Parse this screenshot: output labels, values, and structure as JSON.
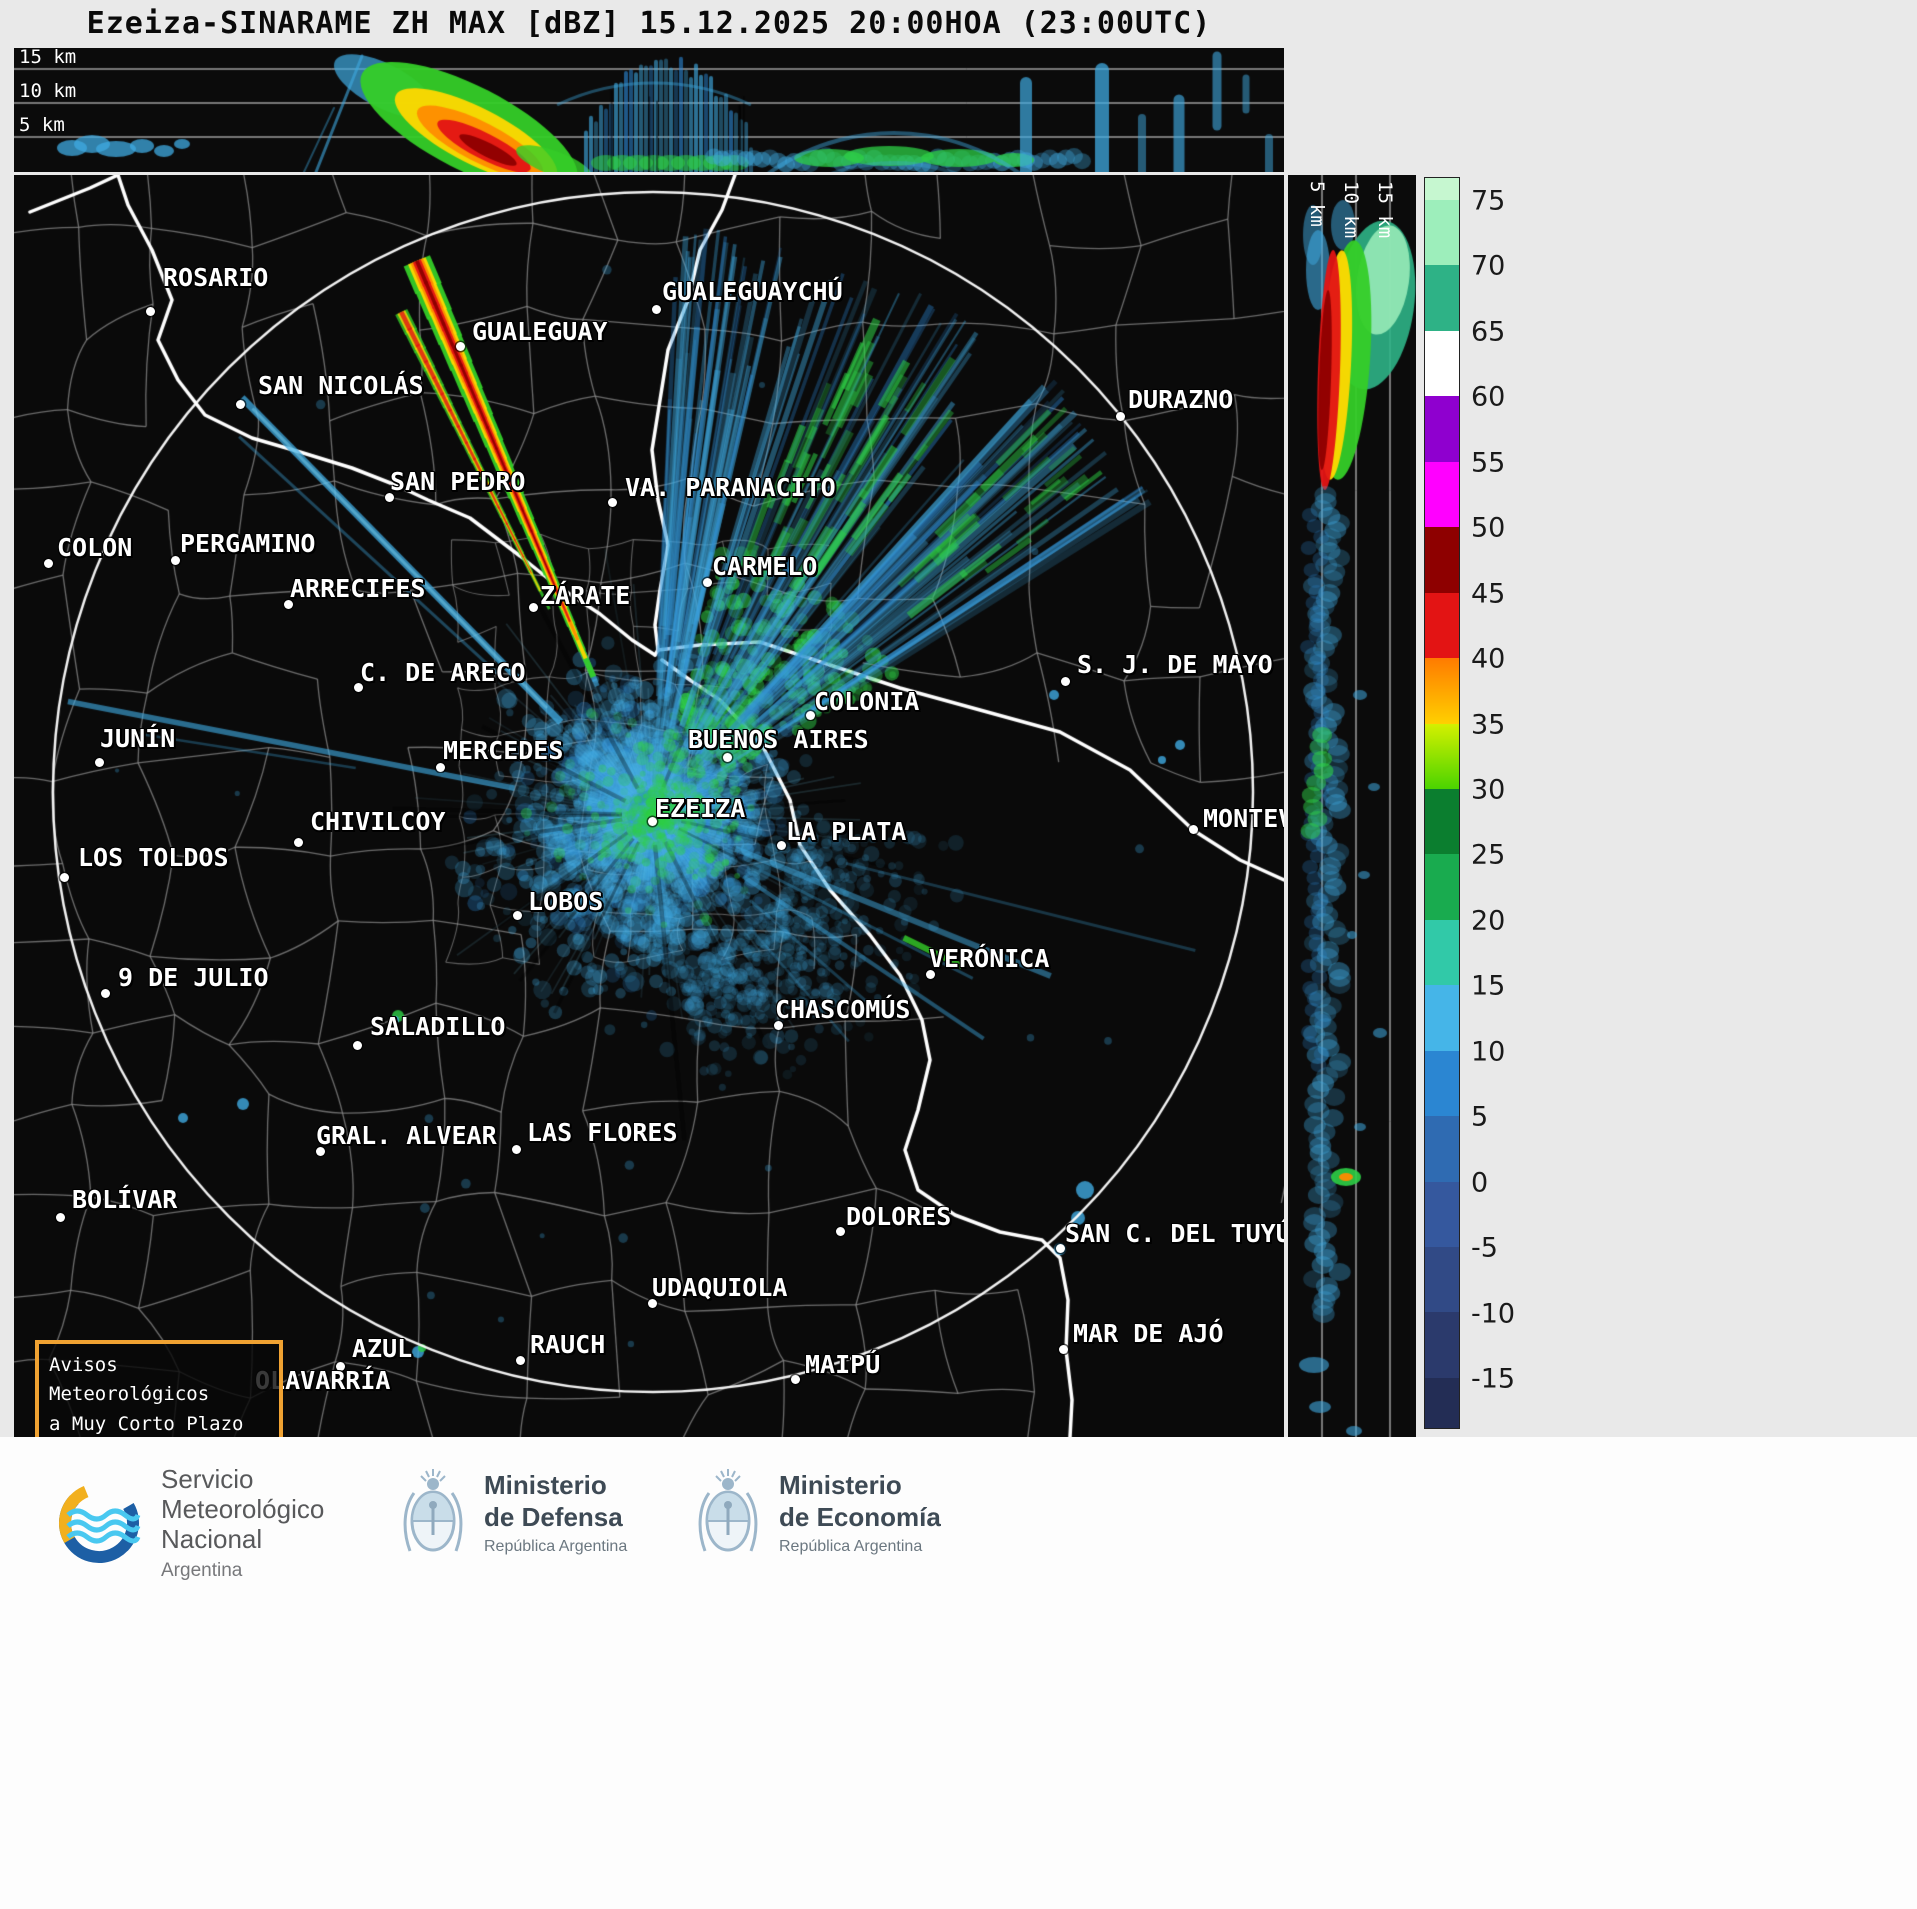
{
  "title": "Ezeiza-SINARAME ZH MAX [dBZ] 15.12.2025 20:00HOA (23:00UTC)",
  "radar": {
    "site": "Ezeiza",
    "product": "ZH MAX",
    "unit": "dBZ",
    "date": "15.12.2025",
    "time_local": "20:00HOA",
    "time_utc": "23:00UTC",
    "palette": {
      "blue": "#3fa9e0",
      "blue_light": "#7fd4f4",
      "blue_deep": "#2b86d2",
      "green": "#2ecf46",
      "green_bright": "#35cd28",
      "yellow": "#ffd800",
      "orange": "#ff8a00",
      "red": "#e31414",
      "dark_red": "#8e0000",
      "teal": "#2eb286",
      "mint": "#9deebb"
    }
  },
  "cross_sections": {
    "top_altitude_labels": [
      "15 km",
      "10 km",
      "5 km"
    ],
    "right_altitude_labels": [
      "5 km",
      "10 km",
      "15 km"
    ]
  },
  "colorbar": {
    "unit": "dBZ",
    "tick_labels": [
      "75",
      "70",
      "65",
      "60",
      "55",
      "50",
      "45",
      "40",
      "35",
      "30",
      "25",
      "20",
      "15",
      "10",
      "5",
      "0",
      "-5",
      "-10",
      "-15"
    ],
    "bands": [
      {
        "range": ">75",
        "color": "#c6f7d0"
      },
      {
        "range": "70-75",
        "color": "#9deebb"
      },
      {
        "range": "65-70",
        "color": "#2eb286"
      },
      {
        "range": "60-65",
        "color": "#ffffff"
      },
      {
        "range": "55-60",
        "color": "#8f00cf"
      },
      {
        "range": "50-55",
        "color": "#ff00ff"
      },
      {
        "range": "45-50",
        "color": "#8e0000"
      },
      {
        "range": "40-45",
        "color": "#e31414"
      },
      {
        "range": "35-40",
        "color": "#ff7b00",
        "color2": "#ffd000"
      },
      {
        "range": "30-35",
        "color": "#d4f000",
        "color2": "#4bd400"
      },
      {
        "range": "25-30",
        "color": "#0b7e2f"
      },
      {
        "range": "20-25",
        "color": "#19ab4f"
      },
      {
        "range": "15-20",
        "color": "#31c9a8"
      },
      {
        "range": "10-15",
        "color": "#45b5e8"
      },
      {
        "range": "5-10",
        "color": "#2b86d2"
      },
      {
        "range": "0-5",
        "color": "#2f6bb2"
      },
      {
        "range": "-5-0",
        "color": "#35589e"
      },
      {
        "range": "-10--5",
        "color": "#314a86"
      },
      {
        "range": "-15--10",
        "color": "#2b3a6c"
      },
      {
        "range": "<-15",
        "color": "#232d55"
      }
    ]
  },
  "map": {
    "warning_box": {
      "lines": [
        "Avisos Meteorológicos",
        "a Muy Corto Plazo"
      ]
    },
    "cities": [
      {
        "name": "ROSARIO",
        "label": [
          149,
          88
        ],
        "dot": [
          136,
          136
        ]
      },
      {
        "name": "GUALEGUAYCHÚ",
        "label": [
          648,
          102
        ],
        "dot": [
          642,
          134
        ]
      },
      {
        "name": "GUALEGUAY",
        "label": [
          458,
          142
        ],
        "dot": [
          446,
          171
        ]
      },
      {
        "name": "SAN NICOLÁS",
        "label": [
          244,
          196
        ],
        "dot": [
          226,
          229
        ]
      },
      {
        "name": "DURAZNO",
        "label": [
          1114,
          210
        ],
        "dot": [
          1106,
          241
        ]
      },
      {
        "name": "SAN PEDRO",
        "label": [
          376,
          292
        ],
        "dot": [
          375,
          322
        ]
      },
      {
        "name": "VA. PARANACITO",
        "label": [
          611,
          298
        ],
        "dot": [
          598,
          327
        ]
      },
      {
        "name": "COLON",
        "label": [
          43,
          358
        ],
        "dot": [
          34,
          388
        ]
      },
      {
        "name": "PERGAMINO",
        "label": [
          166,
          354
        ],
        "dot": [
          161,
          385
        ]
      },
      {
        "name": "ARRECIFES",
        "label": [
          276,
          399
        ],
        "dot": [
          274,
          429
        ]
      },
      {
        "name": "CARMELO",
        "label": [
          698,
          377
        ],
        "dot": [
          693,
          407
        ]
      },
      {
        "name": "ZÁRATE",
        "label": [
          526,
          406
        ],
        "dot": [
          519,
          432
        ]
      },
      {
        "name": "C. DE ARECO",
        "label": [
          346,
          483
        ],
        "dot": [
          344,
          512
        ]
      },
      {
        "name": "S. J. DE MAYO",
        "label": [
          1063,
          475
        ],
        "dot": [
          1051,
          506
        ]
      },
      {
        "name": "COLONIA",
        "label": [
          800,
          512
        ],
        "dot": [
          796,
          540
        ]
      },
      {
        "name": "JUNÍN",
        "label": [
          86,
          549
        ],
        "dot": [
          85,
          587
        ]
      },
      {
        "name": "MERCEDES",
        "label": [
          429,
          561
        ],
        "dot": [
          426,
          592
        ]
      },
      {
        "name": "BUENOS AIRES",
        "label": [
          674,
          550
        ],
        "dot": [
          713,
          582
        ]
      },
      {
        "name": "EZEIZA",
        "label": [
          641,
          619
        ],
        "dot": [
          638,
          646
        ]
      },
      {
        "name": "CHIVILCOY",
        "label": [
          296,
          632
        ],
        "dot": [
          284,
          667
        ]
      },
      {
        "name": "LA PLATA",
        "label": [
          772,
          642
        ],
        "dot": [
          767,
          670
        ]
      },
      {
        "name": "MONTEVIDEO",
        "label": [
          1189,
          629
        ],
        "dot": [
          1179,
          654
        ]
      },
      {
        "name": "LOS TOLDOS",
        "label": [
          64,
          668
        ],
        "dot": [
          50,
          702
        ]
      },
      {
        "name": "LOBOS",
        "label": [
          514,
          712
        ],
        "dot": [
          503,
          740
        ]
      },
      {
        "name": "VERÓNICA",
        "label": [
          915,
          769
        ],
        "dot": [
          916,
          799
        ]
      },
      {
        "name": "9 DE JULIO",
        "label": [
          104,
          788
        ],
        "dot": [
          91,
          818
        ]
      },
      {
        "name": "CHASCOMÚS",
        "label": [
          761,
          820
        ],
        "dot": [
          764,
          850
        ]
      },
      {
        "name": "SALADILLO",
        "label": [
          356,
          837
        ],
        "dot": [
          343,
          870
        ]
      },
      {
        "name": "GRAL. ALVEAR",
        "label": [
          302,
          946
        ],
        "dot": [
          306,
          976
        ]
      },
      {
        "name": "LAS FLORES",
        "label": [
          513,
          943
        ],
        "dot": [
          502,
          974
        ]
      },
      {
        "name": "BOLÍVAR",
        "label": [
          58,
          1010
        ],
        "dot": [
          46,
          1042
        ]
      },
      {
        "name": "DOLORES",
        "label": [
          832,
          1027
        ],
        "dot": [
          826,
          1056
        ]
      },
      {
        "name": "SAN C. DEL TUYÚ",
        "label": [
          1051,
          1044
        ],
        "dot": [
          1046,
          1073
        ]
      },
      {
        "name": "UDAQUIOLA",
        "label": [
          638,
          1098
        ],
        "dot": [
          638,
          1128
        ]
      },
      {
        "name": "MAR DE AJÓ",
        "label": [
          1059,
          1144
        ],
        "dot": [
          1049,
          1174
        ]
      },
      {
        "name": "AZUL",
        "label": [
          338,
          1159
        ],
        "dot": [
          326,
          1191
        ]
      },
      {
        "name": "RAUCH",
        "label": [
          516,
          1155
        ],
        "dot": [
          506,
          1185
        ]
      },
      {
        "name": "MAIPÚ",
        "label": [
          791,
          1175
        ],
        "dot": [
          781,
          1204
        ]
      },
      {
        "name": "OLAVARRÍA",
        "label": [
          241,
          1191
        ],
        "dot": null
      }
    ]
  },
  "footer": {
    "smn": {
      "lines": [
        "Servicio",
        "Meteorológico",
        "Nacional"
      ],
      "country": "Argentina"
    },
    "defensa": {
      "line1": "Ministerio",
      "line2": "de Defensa",
      "line3": "República Argentina"
    },
    "economia": {
      "line1": "Ministerio",
      "line2": "de Economía",
      "line3": "República Argentina"
    }
  }
}
